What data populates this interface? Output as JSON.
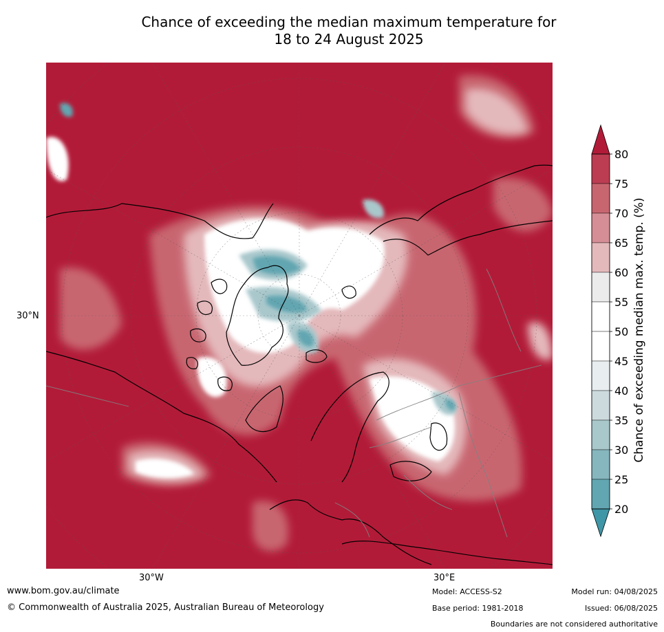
{
  "title": {
    "line1": "Chance of exceeding the median maximum temperature for",
    "line2": "18 to 24 August 2025"
  },
  "map": {
    "projection": "north polar stereographic",
    "lon_labels": [
      "30°W",
      "30°E"
    ],
    "lat_labels": [
      "30°N"
    ],
    "background_color": "#b21b38",
    "land_outline_color": "#000000",
    "boundary_color": "#808080"
  },
  "colorbar": {
    "title": "Chance of exceeding median max. temp. (%)",
    "ticks": [
      "80",
      "75",
      "70",
      "65",
      "60",
      "55",
      "50",
      "45",
      "40",
      "35",
      "30",
      "25",
      "20"
    ],
    "colors_high_to_low": [
      "#b21b38",
      "#bc3d52",
      "#c86670",
      "#d58e95",
      "#e4b9bc",
      "#ebebeb",
      "#ffffff",
      "#ffffff",
      "#e8eef0",
      "#ccdadd",
      "#a9c8cc",
      "#86b6be",
      "#62a6b1",
      "#3f96a6"
    ],
    "extend": "both"
  },
  "footer": {
    "website": "www.bom.gov.au/climate",
    "copyright": "© Commonwealth of Australia 2025, Australian Bureau of Meteorology",
    "model": "Model: ACCESS-S2",
    "base_period": "Base period: 1981-2018",
    "model_run": "Model run: 04/08/2025",
    "issued": "Issued: 06/08/2025",
    "disclaimer": "Boundaries are not considered authoritative"
  }
}
